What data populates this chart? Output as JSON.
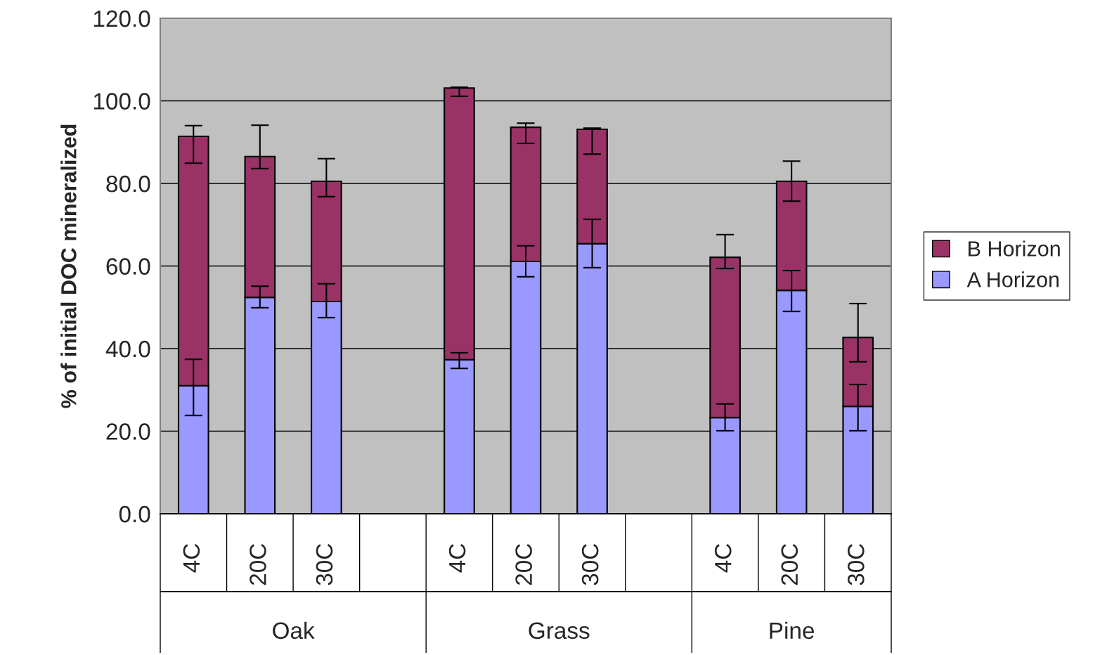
{
  "chart_data": {
    "type": "bar",
    "stacked": true,
    "ylabel": "% of initial DOC mineralized",
    "categories": [
      "4C",
      "20C",
      "30C",
      null,
      "4C",
      "20C",
      "30C",
      null,
      "4C",
      "20C",
      "30C"
    ],
    "annotations": [
      "Oak",
      "Grass",
      "Pine"
    ],
    "series": [
      {
        "name": "A Horizon",
        "color": "#9999ff",
        "values": [
          31.0,
          52.4,
          51.4,
          null,
          37.3,
          61.1,
          65.4,
          null,
          23.3,
          54.1,
          26.0
        ],
        "errors": [
          [
            23.8,
            37.4
          ],
          [
            49.9,
            55.1
          ],
          [
            47.5,
            55.7
          ],
          null,
          [
            35.2,
            39.0
          ],
          [
            57.4,
            64.9
          ],
          [
            59.6,
            71.3
          ],
          null,
          [
            20.1,
            26.6
          ],
          [
            49.0,
            58.9
          ],
          [
            20.1,
            31.3
          ]
        ]
      },
      {
        "name": "B Horizon",
        "color": "#993366",
        "values": [
          60.4,
          34.1,
          29.1,
          null,
          65.8,
          32.5,
          27.7,
          null,
          38.8,
          26.4,
          16.7
        ],
        "errors": [
          [
            84.9,
            94.0
          ],
          [
            83.6,
            94.1
          ],
          [
            76.8,
            86.0
          ],
          null,
          [
            101.1,
            103.3
          ],
          [
            89.7,
            94.6
          ],
          [
            87.1,
            93.4
          ],
          null,
          [
            59.4,
            67.6
          ],
          [
            75.7,
            85.4
          ],
          [
            36.8,
            50.9
          ]
        ]
      }
    ],
    "ylim": [
      0,
      120
    ],
    "yticks": [
      {
        "value": 0,
        "label": "0.0"
      },
      {
        "value": 20,
        "label": "20.0"
      },
      {
        "value": 40,
        "label": "40.0"
      },
      {
        "value": 60,
        "label": "60.0"
      },
      {
        "value": 80,
        "label": "80.0"
      },
      {
        "value": 100,
        "label": "100.0"
      },
      {
        "value": 120,
        "label": "120.0"
      }
    ],
    "grid": "y",
    "legend": "right"
  }
}
